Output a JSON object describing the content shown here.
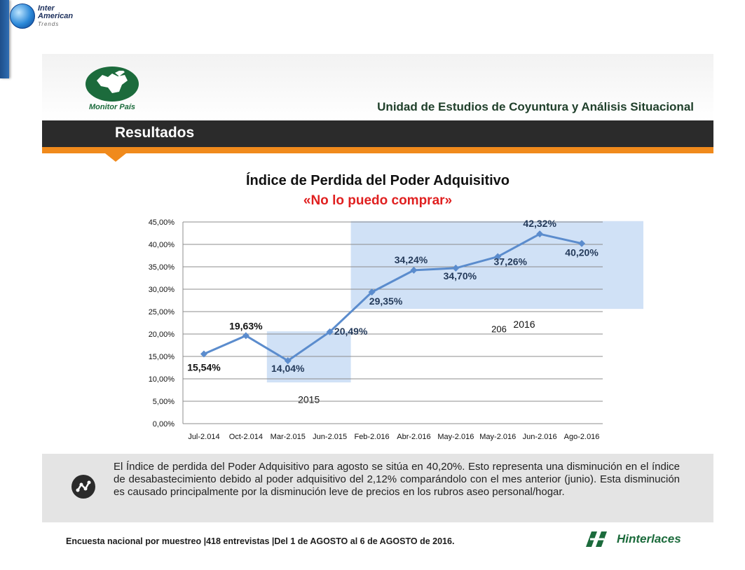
{
  "corner_logo": {
    "line1": "Inter",
    "line2": "American",
    "line3": "Trends"
  },
  "header": {
    "logo_name": "Monitor País",
    "unit_title": "Unidad de Estudios de Coyuntura y Análisis Situacional",
    "section_title": "Resultados"
  },
  "colors": {
    "line": "#5b8ccd",
    "highlight": "#a9c8ee",
    "accent_orange": "#f08a1c",
    "subtitle_red": "#e02020",
    "band": "#2b2b2b"
  },
  "chart_data": {
    "type": "line",
    "title": "Índice de Perdida del Poder Adquisitivo",
    "subtitle": "«No lo puedo comprar»",
    "categories": [
      "Jul-2.014",
      "Oct-2.014",
      "Mar-2.015",
      "Jun-2.015",
      "Feb-2.016",
      "Abr-2.016",
      "May-2.016",
      "May-2.016",
      "Jun-2.016",
      "Ago-2.016"
    ],
    "series": [
      {
        "values": [
          15.54,
          19.63,
          14.04,
          20.49,
          29.35,
          34.24,
          34.7,
          37.26,
          42.32,
          40.2
        ]
      }
    ],
    "data_labels": [
      "15,54%",
      "19,63%",
      "14,04%",
      "20,49%",
      "29,35%",
      "34,24%",
      "34,70%",
      "37,26%",
      "42,32%",
      "40,20%"
    ],
    "yticks": [
      "0,00%",
      "5,00%",
      "10,00%",
      "15,00%",
      "20,00%",
      "25,00%",
      "30,00%",
      "35,00%",
      "40,00%",
      "45,00%"
    ],
    "ylim": [
      0,
      45
    ],
    "grid": true,
    "highlights": [
      {
        "label": "2015",
        "from_index": 2,
        "to_index": 3
      },
      {
        "label": "206",
        "label2": "2016",
        "from_index": 4,
        "to_index": 9
      }
    ]
  },
  "note": {
    "icon": "trend-line-icon",
    "text": "El Índice de perdida del Poder Adquisitivo para agosto se sitúa en 40,20%. Esto representa una disminución en el índice de desabastecimiento debido al poder adquisitivo del 2,12% comparándolo con el mes anterior (junio). Esta disminución es causado principalmente por la disminución leve de precios en los rubros aseo personal/hogar."
  },
  "footer": {
    "text": "Encuesta nacional por muestreo |418 entrevistas |Del 1 de AGOSTO al 6 de AGOSTO de 2016.",
    "logo_name": "Hinterlaces"
  }
}
